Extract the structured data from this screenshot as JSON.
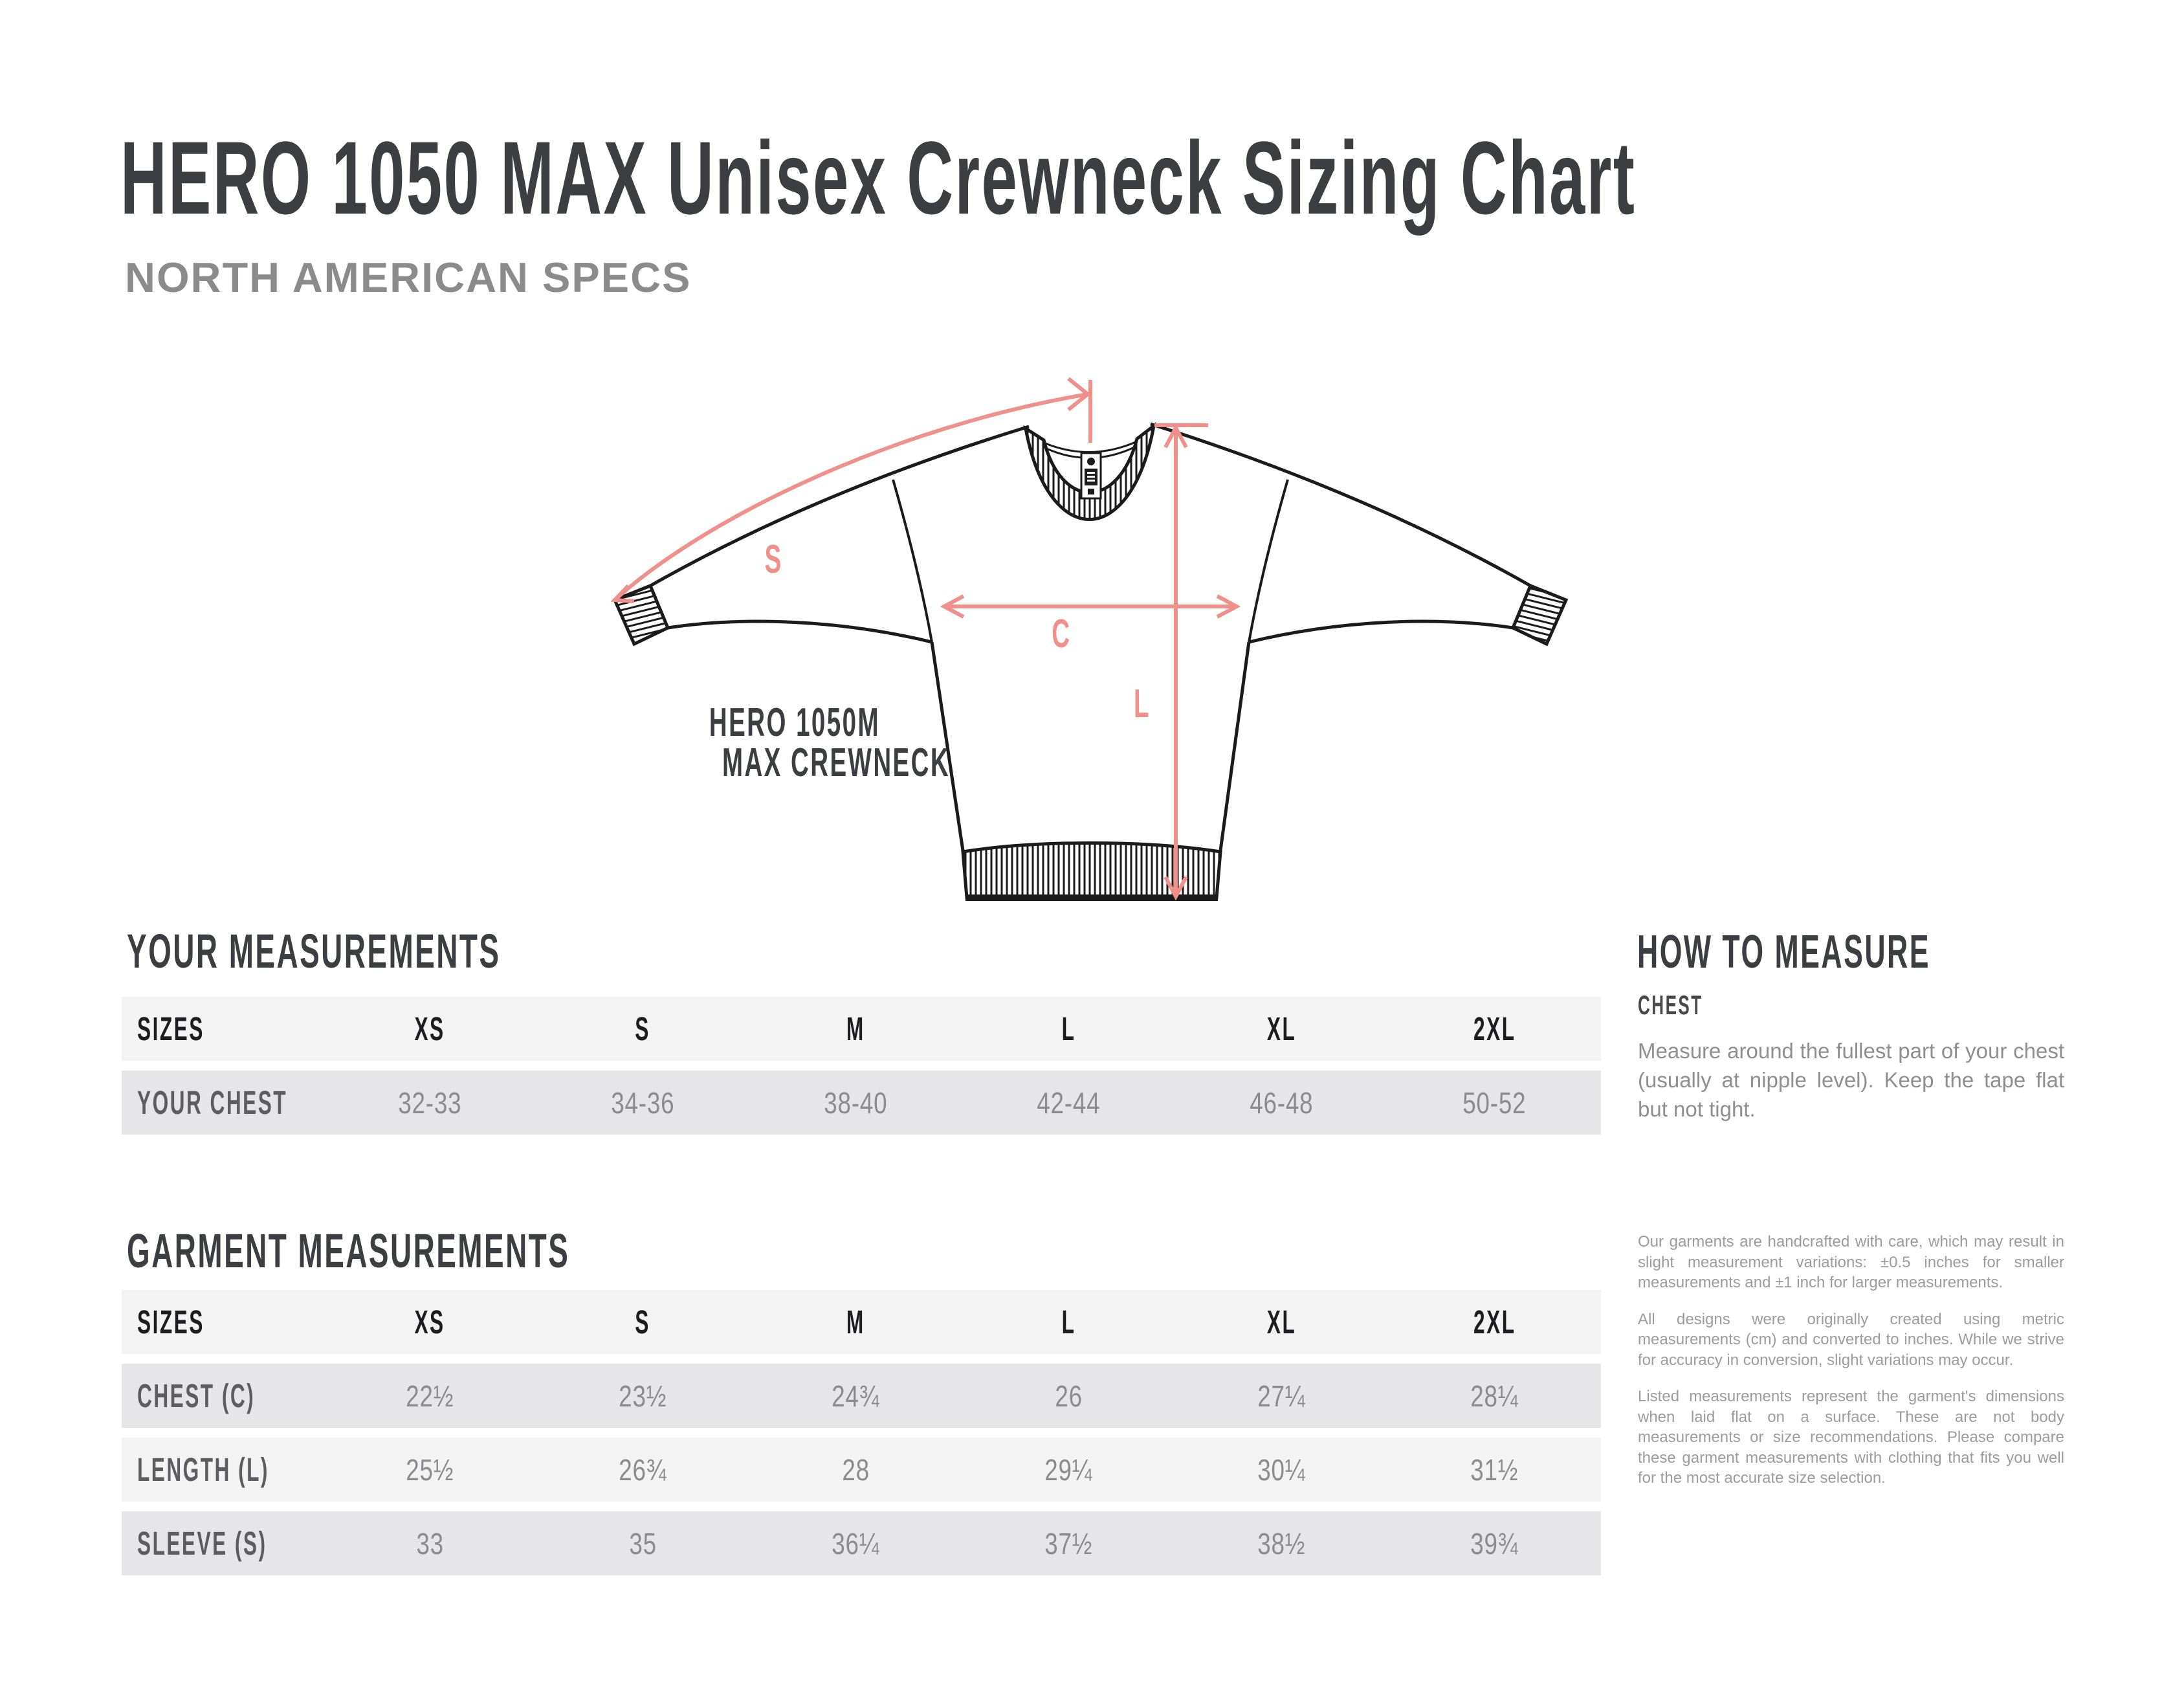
{
  "title": "HERO 1050 MAX Unisex Crewneck Sizing Chart",
  "subtitle": "NORTH AMERICAN SPECS",
  "diagram": {
    "product_label_line1": "HERO 1050M",
    "product_label_line2": "MAX CREWNECK",
    "arrow_labels": {
      "sleeve": "S",
      "chest": "C",
      "length": "L"
    },
    "neck_tag_text": "HERO 1050 MAX"
  },
  "your_measurements": {
    "heading": "YOUR MEASUREMENTS",
    "header": [
      "SIZES",
      "XS",
      "S",
      "M",
      "L",
      "XL",
      "2XL"
    ],
    "rows": [
      {
        "label": "YOUR CHEST",
        "values": [
          "32-33",
          "34-36",
          "38-40",
          "42-44",
          "46-48",
          "50-52"
        ]
      }
    ]
  },
  "garment_measurements": {
    "heading": "GARMENT MEASUREMENTS",
    "header": [
      "SIZES",
      "XS",
      "S",
      "M",
      "L",
      "XL",
      "2XL"
    ],
    "rows": [
      {
        "label": "CHEST (C)",
        "values": [
          "22½",
          "23½",
          "24¾",
          "26",
          "27¼",
          "28¼"
        ]
      },
      {
        "label": "LENGTH (L)",
        "values": [
          "25½",
          "26¾",
          "28",
          "29¼",
          "30¼",
          "31½"
        ]
      },
      {
        "label": "SLEEVE (S)",
        "values": [
          "33",
          "35",
          "36¼",
          "37½",
          "38½",
          "39¾"
        ]
      }
    ]
  },
  "how_to_measure": {
    "heading": "HOW TO MEASURE",
    "subheading": "CHEST",
    "body": "Measure around the fullest part of your chest (usually at nipple level). Keep the tape flat but not tight."
  },
  "notes": [
    "Our garments are handcrafted with care, which may result in slight measurement variations: ±0.5 inches for smaller measurements and ±1 inch for larger measurements.",
    "All designs were originally created using metric measurements (cm) and converted to inches. While we strive for accuracy in conversion, slight variations may occur.",
    "Listed measurements represent the garment's dimensions when laid flat on a surface. These are not body measurements or size recommendations. Please compare these garment measurements with clothing that fits you well for the most accurate size selection."
  ],
  "colors": {
    "paper": "#ffffff",
    "ink": "#1b1b1b",
    "accent": "#f0908a",
    "text_dark": "#3d3e42",
    "text_dark2": "#48484a",
    "text_mid": "#8b8b8e",
    "text_ink": "#1d1d1f",
    "text_rowlabel": "#5d5d5f",
    "text_val": "#8b8b8d",
    "text_gray": "#8f8f91",
    "text_notes": "#9c9c9e",
    "row_light": "#f3f3f4",
    "row_dark": "#e6e6e8"
  }
}
